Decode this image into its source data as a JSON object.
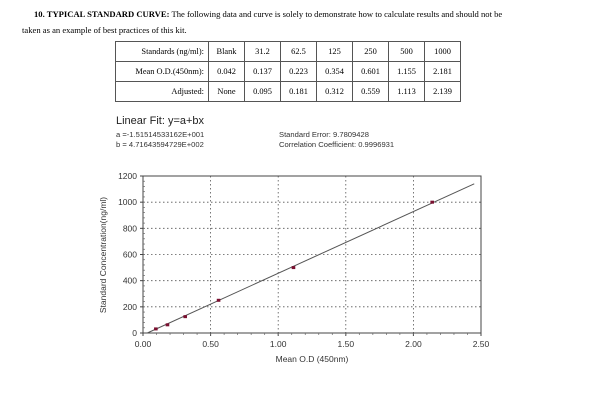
{
  "heading": {
    "label": "10. TYPICAL STANDARD CURVE:",
    "text_line1": " The following data and curve is solely to demonstrate how to calculate results and should not be",
    "text_line2": "taken as an example of best practices of this kit."
  },
  "table": {
    "rows": [
      {
        "label": "Standards (ng/ml):",
        "values": [
          "Blank",
          "31.2",
          "62.5",
          "125",
          "250",
          "500",
          "1000"
        ]
      },
      {
        "label": "Mean O.D.(450nm):",
        "values": [
          "0.042",
          "0.137",
          "0.223",
          "0.354",
          "0.601",
          "1.155",
          "2.181"
        ]
      },
      {
        "label": "Adjusted:",
        "values": [
          "None",
          "0.095",
          "0.181",
          "0.312",
          "0.559",
          "1.113",
          "2.139"
        ]
      }
    ]
  },
  "fit": {
    "title": "Linear Fit: y=a+bx",
    "a": "a =-1.51514533162E+001",
    "b": "b = 4.71643594729E+002",
    "standard_error": "Standard Error: 9.7809428",
    "correlation": "Correlation Coefficient: 0.9996931"
  },
  "chart_data": {
    "type": "scatter",
    "title": "",
    "xlabel": "Mean O.D (450nm)",
    "ylabel": "Standard Concentration(ng/ml)",
    "xlim": [
      0,
      2.5
    ],
    "ylim": [
      0,
      1200
    ],
    "x_ticks": [
      "0.00",
      "0.50",
      "1.00",
      "1.50",
      "2.00",
      "2.50"
    ],
    "y_ticks": [
      "0",
      "200",
      "400",
      "600",
      "800",
      "1000",
      "1200"
    ],
    "grid": true,
    "series": [
      {
        "name": "Standards",
        "x": [
          0.095,
          0.181,
          0.312,
          0.559,
          1.113,
          2.139
        ],
        "y": [
          31.2,
          62.5,
          125,
          250,
          500,
          1000
        ]
      }
    ],
    "fit_line": {
      "a": -15.1514533162,
      "b": 471.643594729,
      "x_range": [
        0.032,
        2.45
      ]
    }
  }
}
